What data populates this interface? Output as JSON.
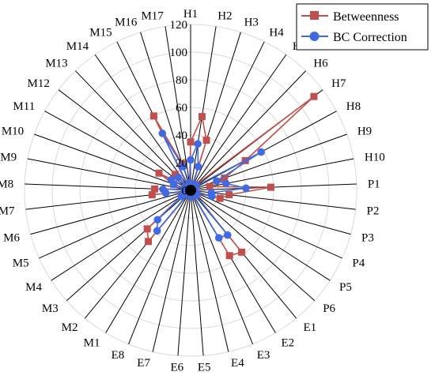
{
  "chart_data": {
    "type": "radar",
    "title": "",
    "categories": [
      "H1",
      "H2",
      "H3",
      "H4",
      "H5",
      "H6",
      "H7",
      "H8",
      "H9",
      "H10",
      "P1",
      "P2",
      "P3",
      "P4",
      "P5",
      "P6",
      "E1",
      "E2",
      "E3",
      "E4",
      "E5",
      "E6",
      "E7",
      "E8",
      "M1",
      "M2",
      "M3",
      "M4",
      "M5",
      "M6",
      "M7",
      "M8",
      "M9",
      "M10",
      "M11",
      "M12",
      "M13",
      "M14",
      "M15",
      "M16",
      "M17"
    ],
    "rlim": [
      0,
      120
    ],
    "radial_ticks": [
      "0",
      "20",
      "40",
      "60",
      "80",
      "100",
      "120"
    ],
    "grid": true,
    "legend_position": "top-right",
    "series": [
      {
        "name": "Betweenness",
        "color": "#c0504d",
        "marker": "square",
        "values": [
          35,
          54,
          38,
          3,
          5,
          5,
          112,
          45,
          26,
          14,
          58,
          28,
          22,
          5,
          5,
          5,
          58,
          55,
          3,
          2,
          5,
          2,
          3,
          3,
          3,
          48,
          42,
          8,
          5,
          4,
          28,
          26,
          4,
          13,
          26,
          4,
          16,
          3,
          60,
          20,
          5
        ]
      },
      {
        "name": "BC Correction",
        "color": "#4169e1",
        "marker": "circle",
        "values": [
          22,
          34,
          18,
          3,
          5,
          5,
          5,
          58,
          20,
          26,
          40,
          15,
          16,
          5,
          5,
          5,
          42,
          40,
          3,
          2,
          5,
          2,
          3,
          3,
          3,
          38,
          32,
          8,
          5,
          4,
          18,
          20,
          4,
          13,
          16,
          4,
          13,
          3,
          46,
          18,
          5
        ]
      }
    ]
  }
}
